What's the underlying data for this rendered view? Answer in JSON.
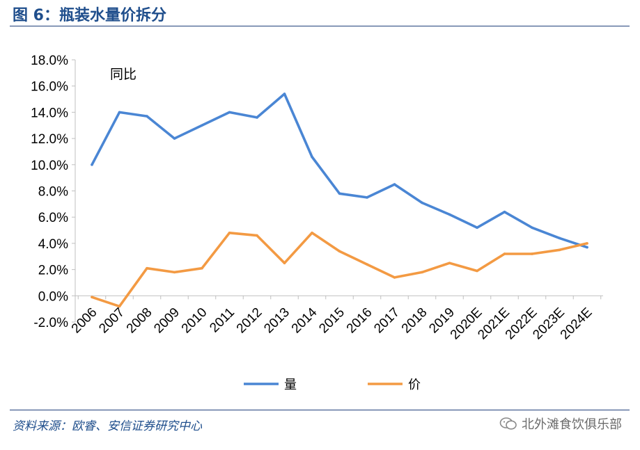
{
  "header": {
    "title": "图 6：瓶装水量价拆分"
  },
  "footer": {
    "source": "资料来源：欧睿、安信证券研究中心",
    "watermark": "北外滩食饮俱乐部"
  },
  "colors": {
    "volume": "#4a86d4",
    "price": "#f39a43",
    "rule": "#1f3f7a"
  },
  "chart_data": {
    "type": "line",
    "title": "",
    "annotation": "同比",
    "xlabel": "",
    "ylabel": "",
    "ylim": [
      -2.0,
      18.0
    ],
    "y_ticks": [
      -2.0,
      0.0,
      2.0,
      4.0,
      6.0,
      8.0,
      10.0,
      12.0,
      14.0,
      16.0,
      18.0
    ],
    "y_tick_labels": [
      "-2.0%",
      "0.0%",
      "2.0%",
      "4.0%",
      "6.0%",
      "8.0%",
      "10.0%",
      "12.0%",
      "14.0%",
      "16.0%",
      "18.0%"
    ],
    "categories": [
      "2006",
      "2007",
      "2008",
      "2009",
      "2010",
      "2011",
      "2012",
      "2013",
      "2014",
      "2015",
      "2016",
      "2017",
      "2018",
      "2019",
      "2020E",
      "2021E",
      "2022E",
      "2023E",
      "2024E"
    ],
    "series": [
      {
        "name": "量",
        "color": "#4a86d4",
        "values": [
          10.0,
          14.0,
          13.7,
          12.0,
          13.0,
          14.0,
          13.6,
          15.4,
          10.6,
          7.8,
          7.5,
          8.5,
          7.1,
          6.2,
          5.2,
          6.4,
          5.2,
          4.4,
          3.7
        ]
      },
      {
        "name": "价",
        "color": "#f39a43",
        "values": [
          -0.1,
          -0.8,
          2.1,
          1.8,
          2.1,
          4.8,
          4.6,
          2.5,
          4.8,
          3.4,
          2.4,
          1.4,
          1.8,
          2.5,
          1.9,
          3.2,
          3.2,
          3.5,
          4.0
        ]
      }
    ],
    "legend_position": "bottom-center",
    "grid": false
  }
}
